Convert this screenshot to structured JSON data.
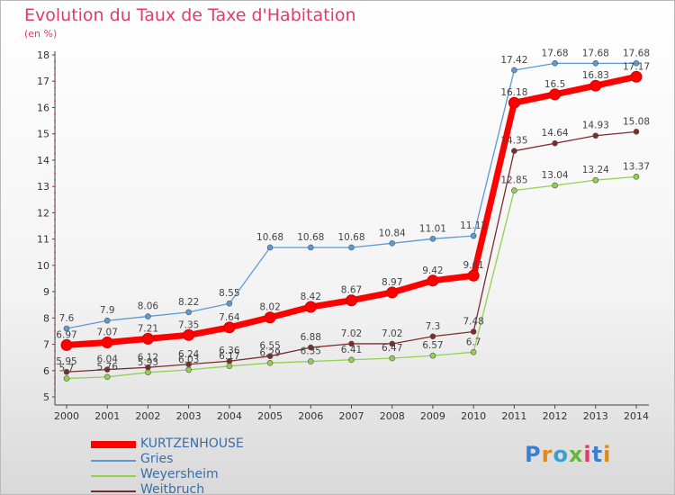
{
  "page": {
    "title": "Evolution du Taux de Taxe d'Habitation",
    "subtitle": "(en %)",
    "brand": "Proxiti"
  },
  "colors": {
    "title": "#e23b6b",
    "axis_text": "#333333",
    "label_text": "#444444",
    "legend_text": "#3a6ea8"
  },
  "chart_data": {
    "type": "line",
    "title": "Evolution du Taux de Taxe d'Habitation",
    "subtitle": "(en %)",
    "xlabel": "",
    "ylabel": "",
    "x": [
      2000,
      2001,
      2002,
      2003,
      2004,
      2005,
      2006,
      2007,
      2008,
      2009,
      2010,
      2011,
      2012,
      2013,
      2014
    ],
    "ylim": [
      5,
      18
    ],
    "yticks": [
      5,
      6,
      7,
      8,
      9,
      10,
      11,
      12,
      13,
      14,
      15,
      16,
      17,
      18
    ],
    "grid": false,
    "legend": "bottom-left",
    "series": [
      {
        "name": "KURTZENHOUSE",
        "color": "#ff0000",
        "values": [
          6.97,
          7.07,
          7.21,
          7.35,
          7.64,
          8.02,
          8.42,
          8.67,
          8.97,
          9.42,
          9.61,
          16.18,
          16.5,
          16.83,
          17.17
        ]
      },
      {
        "name": "Gries",
        "color": "#5b9bd5",
        "values": [
          7.6,
          7.9,
          8.06,
          8.22,
          8.55,
          10.68,
          10.68,
          10.68,
          10.84,
          11.01,
          11.12,
          17.42,
          17.68,
          17.68,
          17.68
        ]
      },
      {
        "name": "Weyersheim",
        "color": "#92d050",
        "values": [
          5.7,
          5.76,
          5.93,
          6.03,
          6.17,
          6.29,
          6.35,
          6.41,
          6.47,
          6.57,
          6.7,
          12.85,
          13.04,
          13.24,
          13.37
        ]
      },
      {
        "name": "Weitbruch",
        "color": "#7b2d2d",
        "values": [
          5.95,
          6.04,
          6.12,
          6.24,
          6.36,
          6.55,
          6.88,
          7.02,
          7.02,
          7.3,
          7.48,
          14.35,
          14.64,
          14.93,
          15.08
        ]
      }
    ]
  }
}
